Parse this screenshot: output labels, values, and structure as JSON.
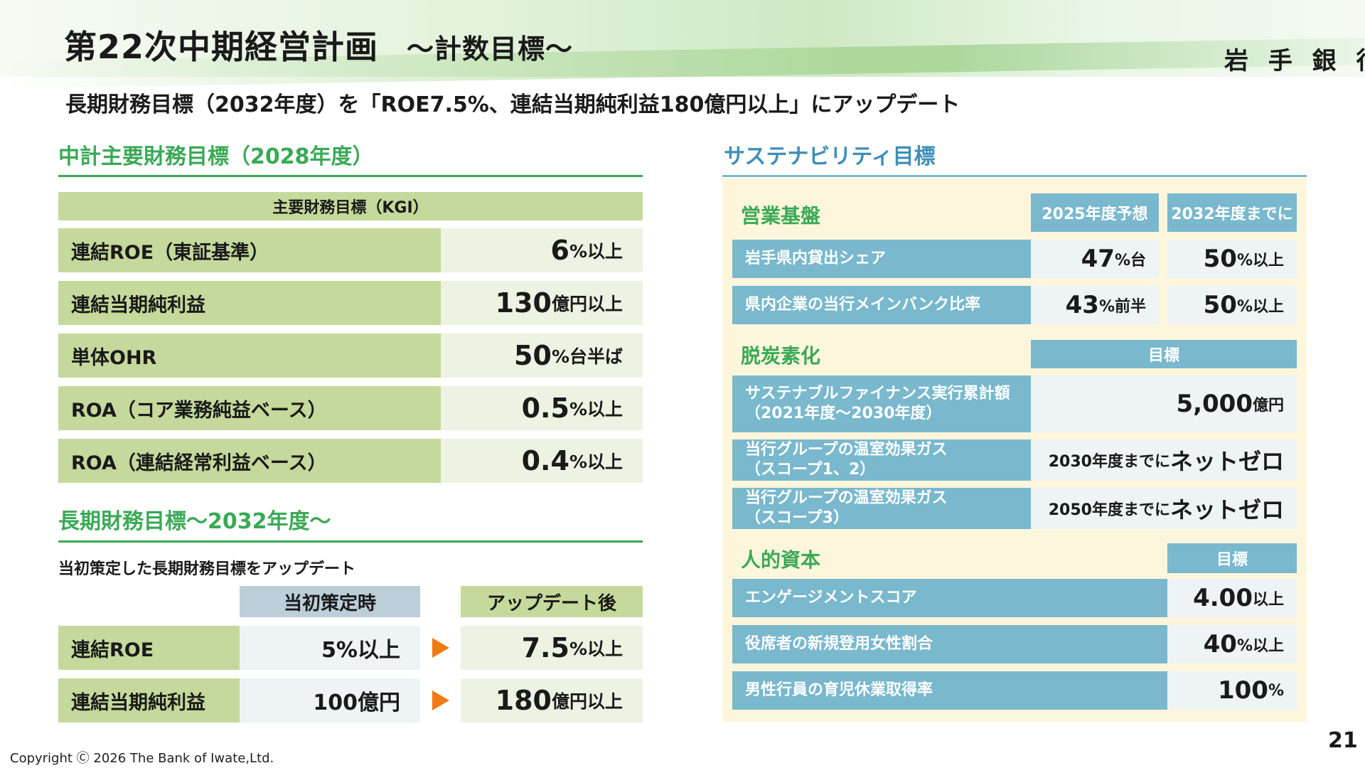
{
  "header": {
    "title": "第22次中期経営計画",
    "subtitle": "～計数目標～",
    "brand": "岩 手 銀 行"
  },
  "lead": "長期財務目標（2032年度）を「ROE7.5%、連結当期純利益180億円以上」にアップデート",
  "left": {
    "section1_title": "中計主要財務目標（2028年度）",
    "kgi_header": "主要財務目標（KGI）",
    "kgi_rows": [
      {
        "label": "連結ROE（東証基準）",
        "value": "6",
        "unit": "%以上"
      },
      {
        "label": "連結当期純利益",
        "value": "130",
        "unit": "億円以上"
      },
      {
        "label": "単体OHR",
        "value": "50",
        "unit": "%台半ば"
      },
      {
        "label": "ROA（コア業務純益ベース）",
        "value": "0.5",
        "unit": "%以上"
      },
      {
        "label": "ROA（連結経常利益ベース）",
        "value": "0.4",
        "unit": "%以上"
      }
    ],
    "section2_title": "長期財務目標～2032年度～",
    "section2_note": "当初策定した長期財務目標をアップデート",
    "col_initial": "当初策定時",
    "col_updated": "アップデート後",
    "long_rows": [
      {
        "label": "連結ROE",
        "initial": "5%以上",
        "value": "7.5",
        "unit": "%以上"
      },
      {
        "label": "連結当期純利益",
        "initial": "100億円",
        "value": "180",
        "unit": "億円以上"
      }
    ]
  },
  "right": {
    "section_title": "サステナビリティ目標",
    "business": {
      "title": "営業基盤",
      "col1": "2025年度予想",
      "col2": "2032年度までに",
      "rows": [
        {
          "label": "岩手県内貸出シェア",
          "v1": "47",
          "u1": "%台",
          "v2": "50",
          "u2": "%以上"
        },
        {
          "label": "県内企業の当行メインバンク比率",
          "v1": "43",
          "u1": "%前半",
          "v2": "50",
          "u2": "%以上"
        }
      ]
    },
    "decarb": {
      "title": "脱炭素化",
      "col": "目標",
      "rows": [
        {
          "label1": "サステナブルファイナンス実行累計額",
          "label2": "（2021年度～2030年度）",
          "prefix": "",
          "value": "5,000",
          "unit": "億円"
        },
        {
          "label1": "当行グループの温室効果ガス",
          "label2": "（スコープ1、2）",
          "prefix": "2030年度までに",
          "value": "ネットゼロ",
          "unit": ""
        },
        {
          "label1": "当行グループの温室効果ガス",
          "label2": "（スコープ3）",
          "prefix": "2050年度までに",
          "value": "ネットゼロ",
          "unit": ""
        }
      ]
    },
    "human": {
      "title": "人的資本",
      "col": "目標",
      "rows": [
        {
          "label": "エンゲージメントスコア",
          "value": "4.00",
          "unit": "以上"
        },
        {
          "label": "役席者の新規登用女性割合",
          "value": "40",
          "unit": "%以上"
        },
        {
          "label": "男性行員の育児休業取得率",
          "value": "100",
          "unit": "%"
        }
      ]
    }
  },
  "footer": {
    "copyright": "Copyright Ⓒ 2026 The Bank of Iwate,Ltd.",
    "page": "21"
  },
  "colors": {
    "green_label": "#c4d99b",
    "green_heading": "#3aa956",
    "blue_heading": "#3f8fb7",
    "blue_cell": "#79b8cd",
    "panel_bg": "#fdf6dc",
    "arrow": "#f07a14"
  }
}
